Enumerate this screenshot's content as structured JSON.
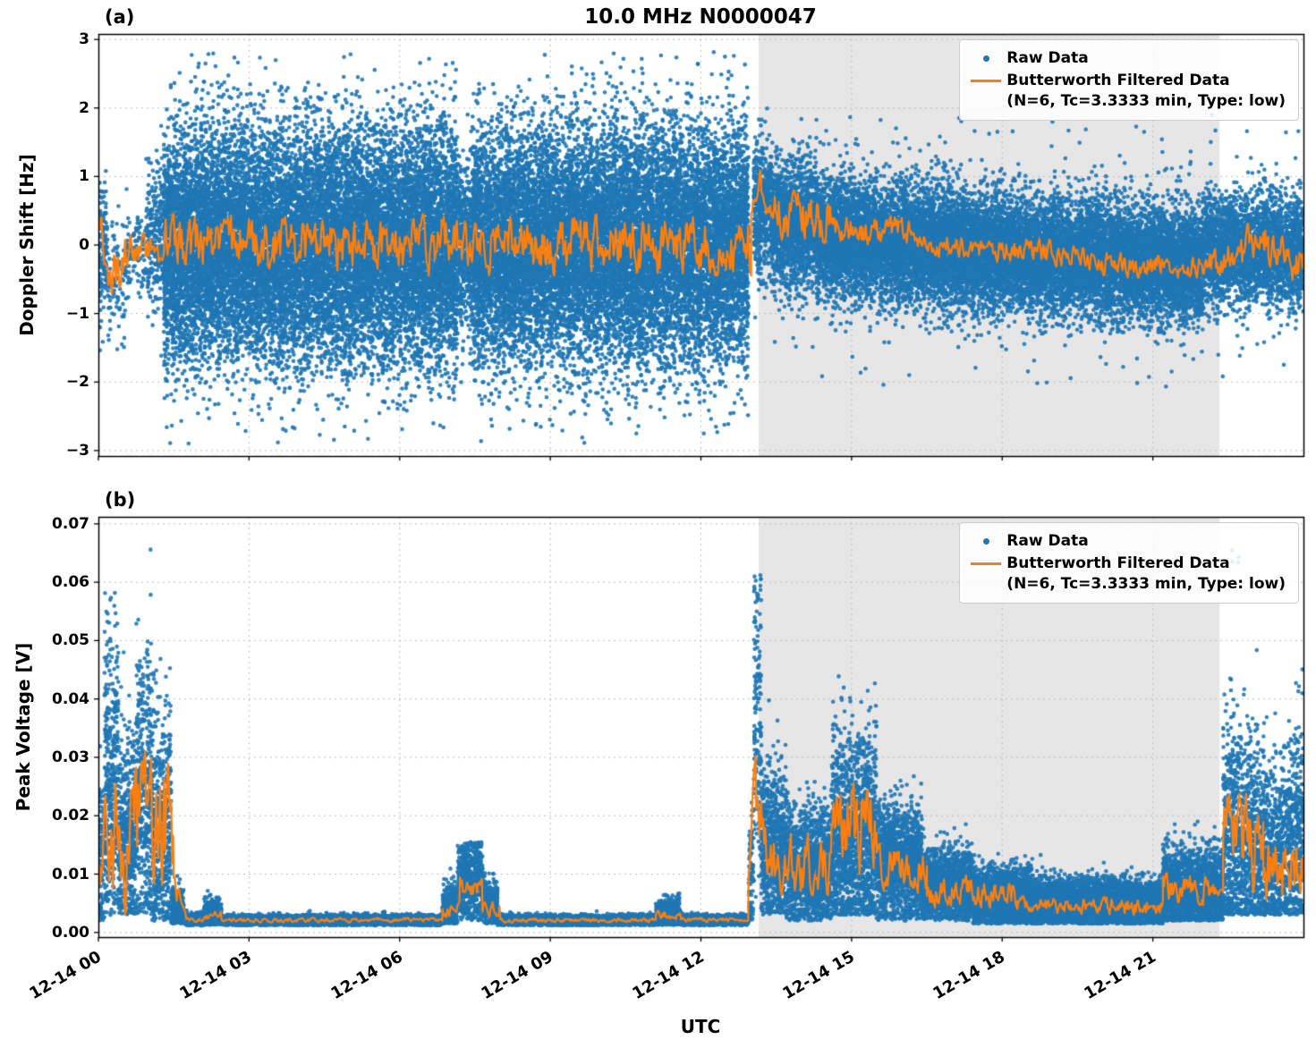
{
  "title": "10.0 MHz N0000047",
  "xlabel": "UTC",
  "legend": {
    "raw_label": "Raw Data",
    "filtered_label": "Butterworth Filtered Data",
    "filtered_sub": "(N=6, Tc=3.3333 min, Type: low)"
  },
  "colors": {
    "raw": "#1f77b4",
    "filtered": "#ff7f0e",
    "shade": "#e6e6e6",
    "grid": "#bbbbbb",
    "axis": "#000000"
  },
  "x_axis": {
    "range_hours": [
      0,
      24
    ],
    "tick_hours": [
      0,
      3,
      6,
      9,
      12,
      15,
      18,
      21
    ],
    "tick_labels": [
      "12-14 00",
      "12-14 03",
      "12-14 06",
      "12-14 09",
      "12-14 12",
      "12-14 15",
      "12-14 18",
      "12-14 21"
    ]
  },
  "shaded_region_hours": [
    13.15,
    22.33
  ],
  "chart_data": [
    {
      "tag": "(a)",
      "type": "scatter+line",
      "ylabel": "Doppler Shift [Hz]",
      "ylim": [
        -3.08,
        3.08
      ],
      "ytick_values": [
        3,
        2,
        1,
        0,
        -1,
        -2,
        -3
      ],
      "ytick_labels": [
        "3",
        "2",
        "1",
        "0",
        "−1",
        "−2",
        "−3"
      ],
      "series": [
        {
          "name": "Raw Data",
          "kind": "scatter",
          "segments": [
            {
              "t0": 0.0,
              "t1": 0.18,
              "rate": 700,
              "mean": -0.1,
              "std": 0.55,
              "min": -1.7,
              "max": 1.1
            },
            {
              "t0": 0.18,
              "t1": 0.55,
              "rate": 260,
              "mean": -0.45,
              "std": 0.45,
              "min": -1.6,
              "max": 0.9
            },
            {
              "t0": 0.55,
              "t1": 0.95,
              "rate": 260,
              "mean": -0.1,
              "std": 0.35,
              "min": -1.2,
              "max": 1.0
            },
            {
              "t0": 0.95,
              "t1": 1.3,
              "rate": 700,
              "mean": 0.1,
              "std": 0.55,
              "min": -1.9,
              "max": 2.1
            },
            {
              "t0": 1.3,
              "t1": 7.15,
              "rate": 2700,
              "mean": 0.0,
              "std": 0.85,
              "min": -2.9,
              "max": 2.8
            },
            {
              "t0": 7.15,
              "t1": 7.45,
              "rate": 1500,
              "mean": 0.0,
              "std": 0.6,
              "min": -2.4,
              "max": 2.2
            },
            {
              "t0": 7.45,
              "t1": 12.95,
              "rate": 2700,
              "mean": 0.0,
              "std": 0.85,
              "min": -2.9,
              "max": 2.9
            },
            {
              "t0": 13.05,
              "t1": 13.4,
              "rate": 1400,
              "mean": 0.55,
              "std": 0.5,
              "min": -1.2,
              "max": 2.0
            },
            {
              "t0": 13.4,
              "t1": 14.3,
              "rate": 1700,
              "mean": 0.3,
              "std": 0.45,
              "min": -1.1,
              "max": 1.6
            },
            {
              "t0": 14.3,
              "t1": 18.0,
              "rate": 1900,
              "mean": 0.12,
              "mean1": -0.1,
              "std": 0.42,
              "min": -1.6,
              "max": 1.5
            },
            {
              "t0": 18.0,
              "t1": 22.0,
              "rate": 1900,
              "mean": -0.1,
              "mean1": -0.32,
              "std": 0.4,
              "min": -1.7,
              "max": 1.2
            },
            {
              "t0": 22.0,
              "t1": 24.0,
              "rate": 1500,
              "mean": -0.08,
              "std": 0.38,
              "min": -1.5,
              "max": 1.2
            },
            {
              "t0": 13.4,
              "t1": 24.0,
              "rate": 60,
              "mean": 0.0,
              "std": 0.9,
              "min": -2.1,
              "max": 1.9
            }
          ]
        },
        {
          "name": "Butterworth Filtered Data",
          "kind": "line",
          "segments": [
            {
              "t0": 0.0,
              "t1": 0.25,
              "mean": 0.35,
              "mean1": -0.55,
              "amp": 0.25
            },
            {
              "t0": 0.25,
              "t1": 0.6,
              "mean": -0.55,
              "mean1": -0.15,
              "amp": 0.3
            },
            {
              "t0": 0.6,
              "t1": 1.3,
              "mean": -0.1,
              "amp": 0.2
            },
            {
              "t0": 1.3,
              "t1": 13.0,
              "mean": 0.0,
              "amp": 0.32
            },
            {
              "t0": 13.0,
              "t1": 13.2,
              "mean": 0.55,
              "mean1": 1.0,
              "amp": 0.12
            },
            {
              "t0": 13.2,
              "t1": 13.45,
              "mean": 0.75,
              "mean1": 0.3,
              "amp": 0.2
            },
            {
              "t0": 13.45,
              "t1": 14.6,
              "mean": 0.45,
              "amp": 0.3
            },
            {
              "t0": 14.6,
              "t1": 16.2,
              "mean": 0.2,
              "amp": 0.18
            },
            {
              "t0": 16.2,
              "t1": 20.0,
              "mean": 0.05,
              "mean1": -0.18,
              "amp": 0.14
            },
            {
              "t0": 20.0,
              "t1": 22.2,
              "mean": -0.28,
              "amp": 0.14
            },
            {
              "t0": 22.2,
              "t1": 23.3,
              "mean": -0.2,
              "mean1": 0.05,
              "amp": 0.25
            },
            {
              "t0": 23.3,
              "t1": 24.0,
              "mean": -0.05,
              "mean1": -0.3,
              "amp": 0.25
            }
          ]
        }
      ]
    },
    {
      "tag": "(b)",
      "type": "scatter+line",
      "ylabel": "Peak Voltage [V]",
      "ylim": [
        -0.0008,
        0.0712
      ],
      "ytick_values": [
        0.07,
        0.06,
        0.05,
        0.04,
        0.03,
        0.02,
        0.01,
        0.0
      ],
      "ytick_labels": [
        "0.07",
        "0.06",
        "0.05",
        "0.04",
        "0.03",
        "0.02",
        "0.01",
        "0.00"
      ],
      "series": [
        {
          "name": "Raw Data",
          "kind": "scatter",
          "segments": [
            {
              "t0": 0.0,
              "t1": 0.12,
              "rate": 1000,
              "mean": 0.012,
              "std": 0.008,
              "min": 0.002,
              "max": 0.045
            },
            {
              "t0": 0.12,
              "t1": 0.4,
              "rate": 1400,
              "mean": 0.025,
              "std": 0.014,
              "min": 0.003,
              "max": 0.068
            },
            {
              "t0": 0.4,
              "t1": 0.75,
              "rate": 1300,
              "mean": 0.016,
              "std": 0.009,
              "min": 0.003,
              "max": 0.05
            },
            {
              "t0": 0.75,
              "t1": 1.05,
              "rate": 1300,
              "mean": 0.024,
              "std": 0.014,
              "min": 0.003,
              "max": 0.067
            },
            {
              "t0": 1.05,
              "t1": 1.45,
              "rate": 1300,
              "mean": 0.018,
              "std": 0.011,
              "min": 0.002,
              "max": 0.048
            },
            {
              "t0": 1.45,
              "t1": 1.7,
              "rate": 900,
              "mean": 0.004,
              "std": 0.002,
              "min": 0.0015,
              "max": 0.012
            },
            {
              "t0": 1.7,
              "t1": 2.1,
              "rate": 1500,
              "mean": 0.0022,
              "std": 0.0005,
              "min": 0.0012,
              "max": 0.005
            },
            {
              "t0": 2.1,
              "t1": 2.45,
              "rate": 1500,
              "mean": 0.003,
              "std": 0.0012,
              "min": 0.0013,
              "max": 0.009
            },
            {
              "t0": 2.45,
              "t1": 6.85,
              "rate": 1500,
              "mean": 0.0021,
              "std": 0.0004,
              "min": 0.0012,
              "max": 0.005
            },
            {
              "t0": 6.85,
              "t1": 7.15,
              "rate": 1300,
              "mean": 0.004,
              "std": 0.002,
              "min": 0.0015,
              "max": 0.011
            },
            {
              "t0": 7.15,
              "t1": 7.65,
              "rate": 1300,
              "mean": 0.009,
              "std": 0.0035,
              "min": 0.002,
              "max": 0.0155
            },
            {
              "t0": 7.65,
              "t1": 7.95,
              "rate": 1300,
              "mean": 0.005,
              "std": 0.002,
              "min": 0.0015,
              "max": 0.012
            },
            {
              "t0": 7.95,
              "t1": 11.1,
              "rate": 1500,
              "mean": 0.0021,
              "std": 0.0004,
              "min": 0.0012,
              "max": 0.005
            },
            {
              "t0": 11.1,
              "t1": 11.6,
              "rate": 1200,
              "mean": 0.003,
              "std": 0.0013,
              "min": 0.0013,
              "max": 0.008
            },
            {
              "t0": 11.6,
              "t1": 12.95,
              "rate": 1500,
              "mean": 0.0021,
              "std": 0.0004,
              "min": 0.0012,
              "max": 0.005
            },
            {
              "t0": 12.95,
              "t1": 13.05,
              "rate": 900,
              "mean": 0.01,
              "std": 0.006,
              "min": 0.002,
              "max": 0.03
            },
            {
              "t0": 13.05,
              "t1": 13.2,
              "rate": 1000,
              "mean": 0.038,
              "std": 0.015,
              "min": 0.006,
              "max": 0.062
            },
            {
              "t0": 13.2,
              "t1": 13.7,
              "rate": 1500,
              "mean": 0.014,
              "std": 0.007,
              "min": 0.003,
              "max": 0.04
            },
            {
              "t0": 13.7,
              "t1": 14.6,
              "rate": 1600,
              "mean": 0.011,
              "std": 0.005,
              "min": 0.002,
              "max": 0.032
            },
            {
              "t0": 14.6,
              "t1": 15.5,
              "rate": 1600,
              "mean": 0.016,
              "std": 0.009,
              "min": 0.003,
              "max": 0.047
            },
            {
              "t0": 15.5,
              "t1": 16.4,
              "rate": 1600,
              "mean": 0.012,
              "std": 0.005,
              "min": 0.002,
              "max": 0.03
            },
            {
              "t0": 16.4,
              "t1": 17.4,
              "rate": 1700,
              "mean": 0.008,
              "std": 0.003,
              "min": 0.002,
              "max": 0.02
            },
            {
              "t0": 17.4,
              "t1": 18.6,
              "rate": 1800,
              "mean": 0.006,
              "std": 0.0025,
              "min": 0.0015,
              "max": 0.016
            },
            {
              "t0": 18.6,
              "t1": 21.2,
              "rate": 1800,
              "mean": 0.005,
              "std": 0.002,
              "min": 0.0015,
              "max": 0.014
            },
            {
              "t0": 21.2,
              "t1": 22.4,
              "rate": 1500,
              "mean": 0.0075,
              "std": 0.0035,
              "min": 0.002,
              "max": 0.021
            },
            {
              "t0": 22.4,
              "t1": 23.1,
              "rate": 1300,
              "mean": 0.015,
              "std": 0.01,
              "min": 0.003,
              "max": 0.052
            },
            {
              "t0": 23.1,
              "t1": 23.7,
              "rate": 1300,
              "mean": 0.013,
              "std": 0.008,
              "min": 0.003,
              "max": 0.047
            },
            {
              "t0": 23.7,
              "t1": 24.0,
              "rate": 1200,
              "mean": 0.016,
              "std": 0.009,
              "min": 0.003,
              "max": 0.05
            },
            {
              "t0": 22.55,
              "t1": 22.75,
              "rate": 20,
              "mean": 0.064,
              "std": 0.0015,
              "min": 0.06,
              "max": 0.067
            }
          ]
        },
        {
          "name": "Butterworth Filtered Data",
          "kind": "line",
          "segments": [
            {
              "t0": 0.0,
              "t1": 0.15,
              "mean": 0.004,
              "mean1": 0.022,
              "amp": 0.004
            },
            {
              "t0": 0.15,
              "t1": 1.5,
              "mean": 0.017,
              "amp": 0.01
            },
            {
              "t0": 1.5,
              "t1": 1.75,
              "mean": 0.008,
              "mean1": 0.0025,
              "amp": 0.0015
            },
            {
              "t0": 1.75,
              "t1": 2.1,
              "mean": 0.0022,
              "amp": 0.0003
            },
            {
              "t0": 2.1,
              "t1": 2.45,
              "mean": 0.003,
              "amp": 0.0006
            },
            {
              "t0": 2.45,
              "t1": 6.85,
              "mean": 0.0021,
              "amp": 0.0003
            },
            {
              "t0": 6.85,
              "t1": 7.2,
              "mean": 0.004,
              "amp": 0.001
            },
            {
              "t0": 7.2,
              "t1": 7.65,
              "mean": 0.0075,
              "amp": 0.0015
            },
            {
              "t0": 7.65,
              "t1": 8.0,
              "mean": 0.004,
              "amp": 0.001
            },
            {
              "t0": 8.0,
              "t1": 11.1,
              "mean": 0.0021,
              "amp": 0.0003
            },
            {
              "t0": 11.1,
              "t1": 11.6,
              "mean": 0.003,
              "amp": 0.0006
            },
            {
              "t0": 11.6,
              "t1": 12.95,
              "mean": 0.0021,
              "amp": 0.0003
            },
            {
              "t0": 12.95,
              "t1": 13.1,
              "mean": 0.01,
              "mean1": 0.033,
              "amp": 0.002
            },
            {
              "t0": 13.1,
              "t1": 13.35,
              "mean": 0.022,
              "mean1": 0.012,
              "amp": 0.004
            },
            {
              "t0": 13.35,
              "t1": 14.6,
              "mean": 0.012,
              "amp": 0.004
            },
            {
              "t0": 14.6,
              "t1": 15.5,
              "mean": 0.018,
              "amp": 0.006
            },
            {
              "t0": 15.5,
              "t1": 16.5,
              "mean": 0.011,
              "amp": 0.003
            },
            {
              "t0": 16.5,
              "t1": 18.3,
              "mean": 0.007,
              "amp": 0.002
            },
            {
              "t0": 18.3,
              "t1": 21.2,
              "mean": 0.0045,
              "amp": 0.0012
            },
            {
              "t0": 21.2,
              "t1": 22.4,
              "mean": 0.0075,
              "amp": 0.002
            },
            {
              "t0": 22.4,
              "t1": 23.2,
              "mean": 0.016,
              "amp": 0.007
            },
            {
              "t0": 23.2,
              "t1": 24.0,
              "mean": 0.011,
              "amp": 0.005
            }
          ]
        }
      ]
    }
  ]
}
